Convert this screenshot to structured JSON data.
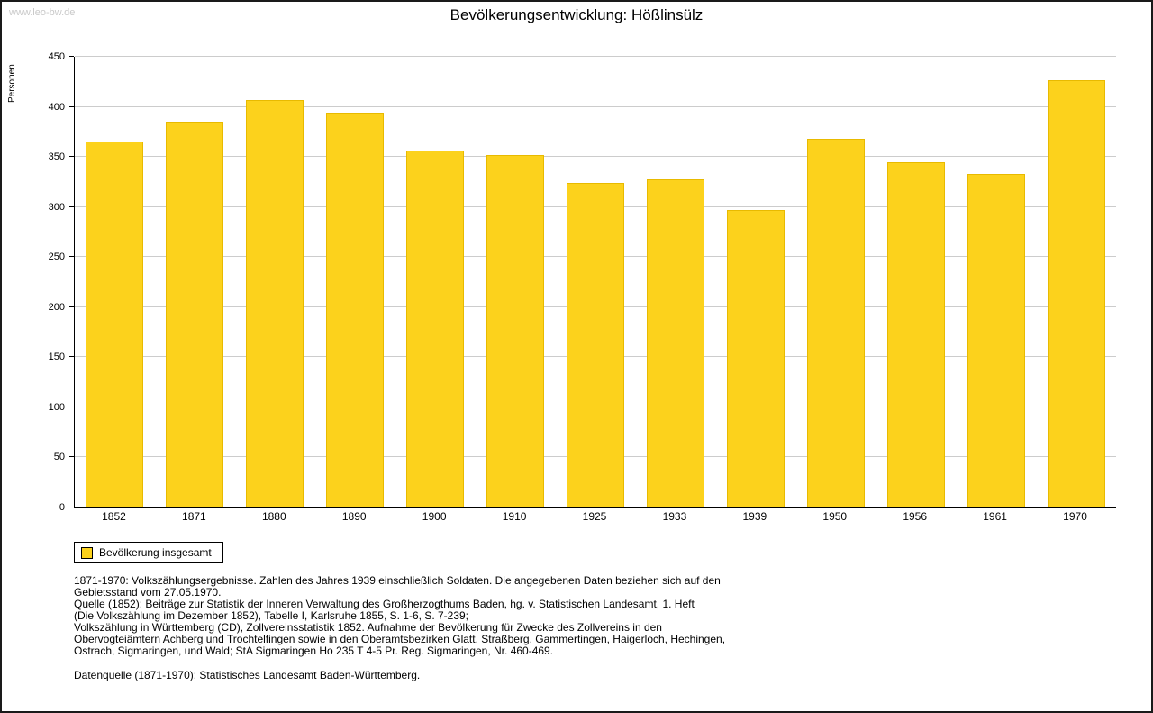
{
  "page": {
    "watermark": "www.leo-bw.de"
  },
  "chart_data": {
    "type": "bar",
    "title": "Bevölkerungsentwicklung: Hößlinsülz",
    "ylabel": "Personen",
    "xlabel": "",
    "categories": [
      "1852",
      "1871",
      "1880",
      "1890",
      "1900",
      "1910",
      "1925",
      "1933",
      "1939",
      "1950",
      "1956",
      "1961",
      "1970"
    ],
    "values": [
      365,
      385,
      407,
      394,
      356,
      352,
      324,
      328,
      297,
      368,
      345,
      333,
      427
    ],
    "ylim": [
      0,
      450
    ],
    "ytick_step": 50,
    "grid": true,
    "bar_color": "#fcd21c",
    "legend": {
      "label": "Bevölkerung insgesamt",
      "position": "bottom-left"
    }
  },
  "footnotes": {
    "lines": [
      "1871-1970: Volkszählungsergebnisse. Zahlen des Jahres 1939 einschließlich Soldaten. Die angegebenen Daten beziehen sich auf den",
      "Gebietsstand vom 27.05.1970.",
      "Quelle (1852): Beiträge zur Statistik der Inneren Verwaltung des Großherzogthums Baden, hg. v. Statistischen Landesamt, 1. Heft",
      "(Die Volkszählung im Dezember 1852), Tabelle I, Karlsruhe 1855, S. 1-6, S. 7-239;",
      "Volkszählung in Württemberg (CD), Zollvereinsstatistik 1852. Aufnahme der Bevölkerung für Zwecke des Zollvereins in den",
      "Obervogteiämtern Achberg und Trochtelfingen sowie in den Oberamtsbezirken Glatt, Straßberg, Gammertingen, Haigerloch, Hechingen,",
      "Ostrach, Sigmaringen, und Wald; StA Sigmaringen Ho 235 T 4-5 Pr. Reg. Sigmaringen, Nr. 460-469."
    ],
    "datasource": "Datenquelle (1871-1970): Statistisches Landesamt Baden-Württemberg."
  }
}
